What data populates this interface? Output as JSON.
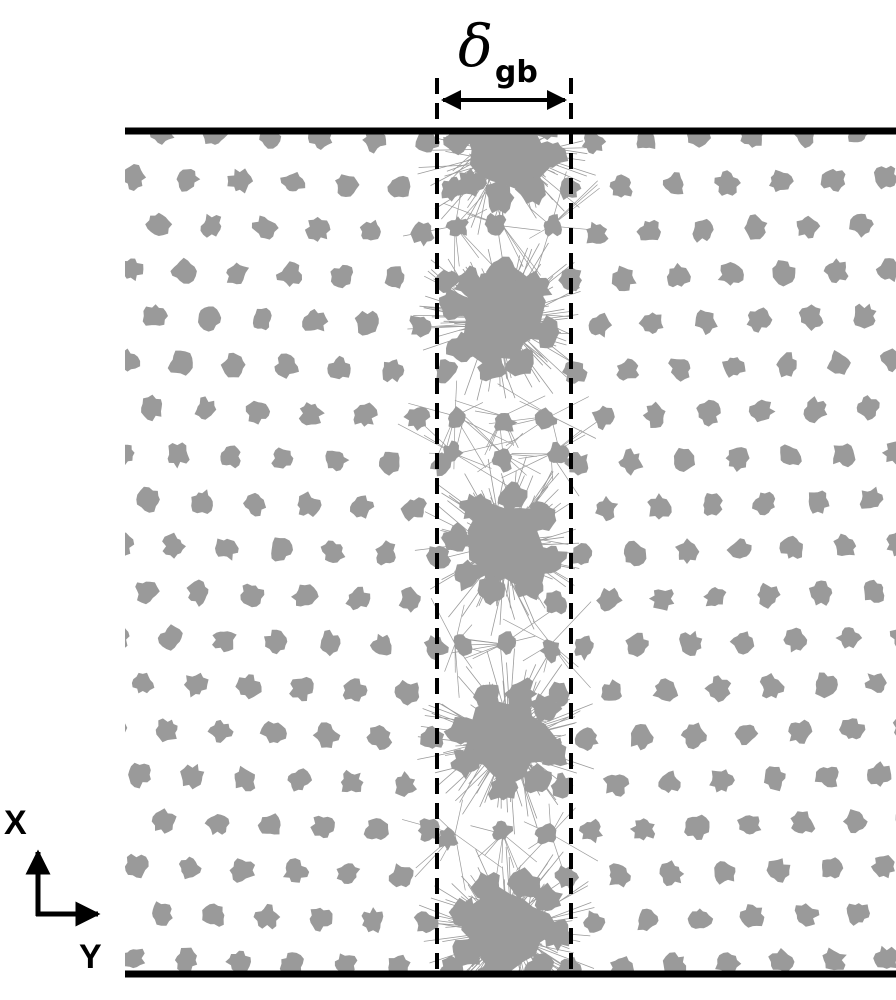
{
  "figure": {
    "width_label": {
      "symbol": "δ",
      "subscript": "gb"
    },
    "axes": {
      "vertical": "X",
      "horizontal": "Y"
    },
    "atom_color": "#9a9a9a",
    "line_color": "#000000"
  }
}
